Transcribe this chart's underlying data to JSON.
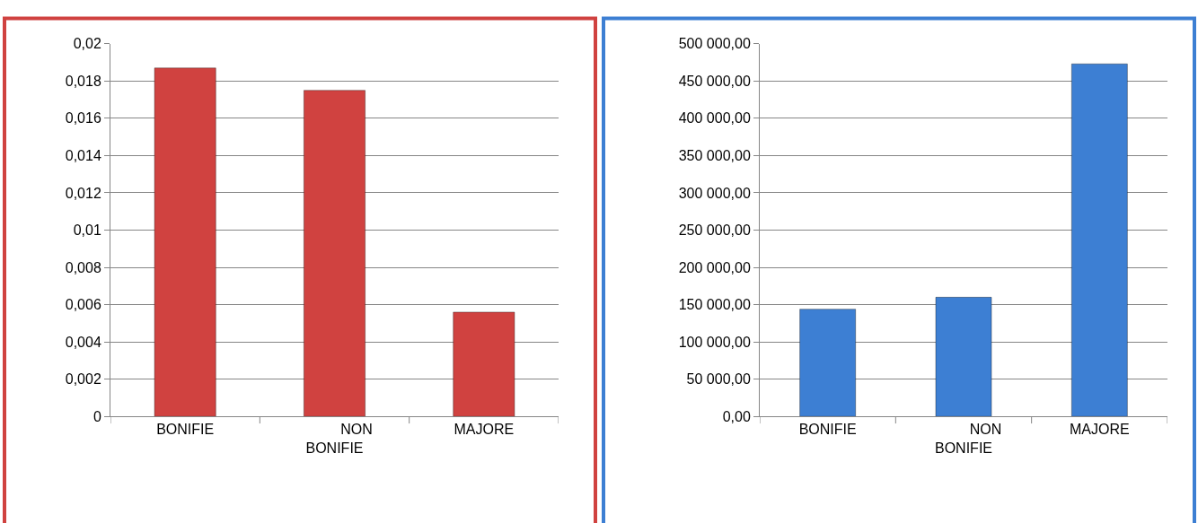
{
  "chart_data": [
    {
      "type": "bar",
      "categories": [
        "BONIFIE",
        "NON BONIFIE",
        "MAJORE"
      ],
      "values": [
        0.0187,
        0.0175,
        0.0056
      ],
      "color": "#d04240",
      "ylim": [
        0,
        0.02
      ],
      "yticks": [
        0,
        {
          "value": 0.002,
          "label": "0,002"
        },
        {
          "value": 0.004,
          "label": "0,004"
        },
        {
          "value": 0.006,
          "label": "0,006"
        },
        {
          "value": 0.008,
          "label": "0,008"
        },
        {
          "value": 0.01,
          "label": "0,01"
        },
        {
          "value": 0.012,
          "label": "0,012"
        },
        {
          "value": 0.014,
          "label": "0,014"
        },
        {
          "value": 0.016,
          "label": "0,016"
        },
        {
          "value": 0.018,
          "label": "0,018"
        },
        {
          "value": 0.02,
          "label": "0,02"
        }
      ],
      "grid": "y"
    },
    {
      "type": "bar",
      "categories": [
        "BONIFIE",
        "NON BONIFIE",
        "MAJORE"
      ],
      "values": [
        144000,
        160000,
        473000
      ],
      "color": "#3d7fd3",
      "ylim": [
        0,
        500000
      ],
      "yticks": [
        {
          "value": 0,
          "label": "0,00"
        },
        {
          "value": 50000,
          "label": "50 000,00"
        },
        {
          "value": 100000,
          "label": "100 000,00"
        },
        {
          "value": 150000,
          "label": "150 000,00"
        },
        {
          "value": 200000,
          "label": "200 000,00"
        },
        {
          "value": 250000,
          "label": "250 000,00"
        },
        {
          "value": 300000,
          "label": "300 000,00"
        },
        {
          "value": 350000,
          "label": "350 000,00"
        },
        {
          "value": 400000,
          "label": "400 000,00"
        },
        {
          "value": 450000,
          "label": "450 000,00"
        },
        {
          "value": 500000,
          "label": "500 000,00"
        }
      ],
      "grid": "y"
    }
  ]
}
